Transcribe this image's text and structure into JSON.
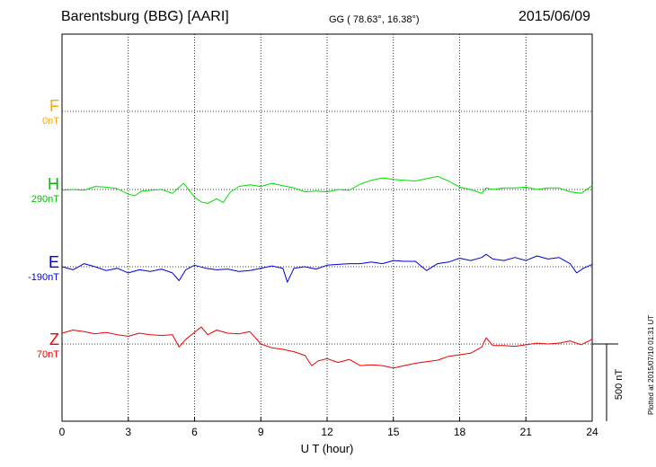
{
  "header": {
    "station": "Barentsburg (BBG)  [AARI]",
    "coords": "GG ( 78.63°,  16.38°)",
    "date": "2015/06/09"
  },
  "plotted_note": "Plotted at 2015/07/10 01:31  UT",
  "scale_label": "500 nT",
  "chart_data": {
    "type": "line",
    "title": "Barentsburg (BBG)  [AARI]",
    "xlabel": "U T (hour)",
    "ylabel": "",
    "xlim": [
      0,
      24
    ],
    "x_ticks": [
      "0",
      "3",
      "6",
      "9",
      "12",
      "15",
      "18",
      "21",
      "24"
    ],
    "grid": true,
    "scale_bar_nT": 500,
    "series": [
      {
        "name": "F",
        "baseline": "0nT",
        "color": "#ffa500",
        "x": [],
        "y": []
      },
      {
        "name": "H",
        "baseline": "290nT",
        "color": "#00dd00",
        "x": [
          0,
          0.5,
          1,
          1.5,
          2,
          2.5,
          3,
          3.3,
          3.6,
          4,
          4.5,
          5,
          5.5,
          6,
          6.3,
          6.6,
          7,
          7.3,
          7.6,
          8,
          8.5,
          9,
          9.5,
          10,
          10.5,
          11,
          11.5,
          12,
          12.5,
          13,
          13.5,
          14,
          14.5,
          15,
          15.5,
          16,
          16.5,
          17,
          17.5,
          18,
          18.5,
          19,
          19.2,
          19.5,
          20,
          20.5,
          21,
          21.5,
          22,
          22.5,
          23,
          23.5,
          24
        ],
        "y": [
          -5,
          0,
          -5,
          20,
          15,
          5,
          -30,
          -40,
          -10,
          -5,
          0,
          -25,
          40,
          -50,
          -80,
          -90,
          -60,
          -85,
          -20,
          20,
          30,
          20,
          40,
          25,
          10,
          -15,
          -10,
          -15,
          0,
          -5,
          35,
          60,
          75,
          65,
          60,
          55,
          70,
          85,
          55,
          15,
          0,
          -25,
          10,
          0,
          10,
          10,
          15,
          0,
          10,
          10,
          -15,
          -25,
          25
        ]
      },
      {
        "name": "E",
        "baseline": "-190nT",
        "color": "#0000dd",
        "x": [
          0,
          0.5,
          1,
          1.5,
          2,
          2.5,
          3,
          3.5,
          4,
          4.5,
          5,
          5.3,
          5.6,
          6,
          6.5,
          7,
          7.5,
          8,
          8.5,
          9,
          9.5,
          10,
          10.2,
          10.5,
          11,
          11.5,
          12,
          12.5,
          13,
          13.5,
          14,
          14.5,
          15,
          15.5,
          16,
          16.5,
          17,
          17.5,
          18,
          18.5,
          19,
          19.2,
          19.5,
          20,
          20.5,
          21,
          21.5,
          22,
          22.5,
          23,
          23.3,
          23.6,
          24
        ],
        "y": [
          0,
          -20,
          20,
          0,
          -25,
          -10,
          -40,
          -20,
          -30,
          -15,
          -40,
          -90,
          -20,
          10,
          -10,
          -20,
          -15,
          -30,
          -25,
          -10,
          5,
          -10,
          -100,
          -10,
          0,
          -15,
          10,
          15,
          20,
          20,
          30,
          20,
          40,
          35,
          35,
          -25,
          20,
          30,
          55,
          40,
          60,
          80,
          50,
          40,
          60,
          40,
          70,
          50,
          60,
          20,
          -40,
          -10,
          15
        ]
      },
      {
        "name": "Z",
        "baseline": "70nT",
        "color": "#ee0000",
        "x": [
          0,
          0.5,
          1,
          1.5,
          2,
          2.5,
          3,
          3.5,
          4,
          4.5,
          5,
          5.3,
          5.6,
          6,
          6.3,
          6.6,
          7,
          7.5,
          8,
          8.5,
          9,
          9.5,
          10,
          10.5,
          11,
          11.3,
          11.6,
          12,
          12.5,
          13,
          13.5,
          14,
          14.5,
          15,
          15.5,
          16,
          16.5,
          17,
          17.5,
          18,
          18.5,
          19,
          19.2,
          19.5,
          20,
          20.5,
          21,
          21.5,
          22,
          22.5,
          23,
          23.5,
          24
        ],
        "y": [
          70,
          90,
          80,
          65,
          75,
          60,
          50,
          70,
          60,
          55,
          60,
          -20,
          30,
          75,
          110,
          60,
          90,
          70,
          65,
          80,
          0,
          -25,
          -35,
          -50,
          -75,
          -140,
          -110,
          -95,
          -120,
          -100,
          -140,
          -135,
          -140,
          -155,
          -140,
          -125,
          -115,
          -105,
          -80,
          -70,
          -60,
          -20,
          40,
          -10,
          -10,
          -15,
          -5,
          5,
          0,
          5,
          20,
          -5,
          30
        ]
      }
    ]
  }
}
